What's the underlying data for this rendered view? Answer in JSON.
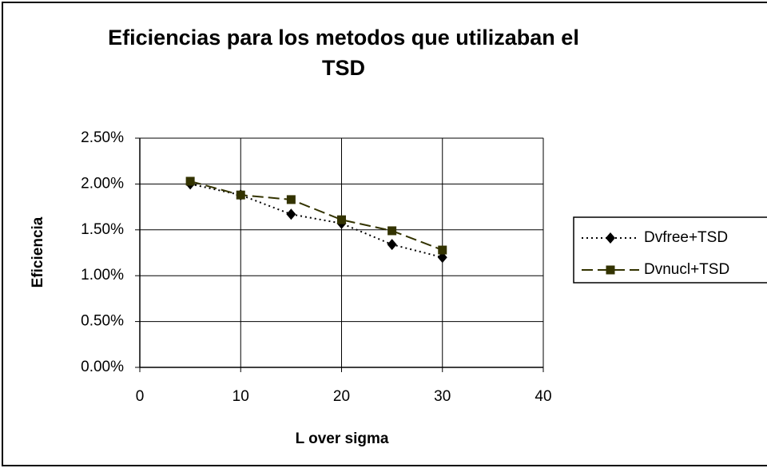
{
  "chart_data": {
    "type": "scatter",
    "title": "Eficiencias para los metodos que utilizaban el TSD",
    "x_label": "L over sigma",
    "y_label": "Eficiencia",
    "x": [
      5,
      10,
      15,
      20,
      25,
      30
    ],
    "series": [
      {
        "name": "Dvfree+TSD",
        "color": "#000000",
        "dash": "dotted",
        "marker": "diamond",
        "values": [
          2.0,
          1.88,
          1.67,
          1.57,
          1.34,
          1.2
        ]
      },
      {
        "name": "Dvnucl+TSD",
        "color": "#333300",
        "dash": "dashed",
        "marker": "square",
        "values": [
          2.03,
          1.88,
          1.83,
          1.61,
          1.49,
          1.28
        ]
      }
    ],
    "xlim": [
      0,
      40
    ],
    "xticks": [
      0,
      10,
      20,
      30,
      40
    ],
    "ylim": [
      0,
      2.5
    ],
    "yticks": [
      {
        "value": 0,
        "label": "0.00%"
      },
      {
        "value": 0.5,
        "label": "0.50%"
      },
      {
        "value": 1.0,
        "label": "1.00%"
      },
      {
        "value": 1.5,
        "label": "1.50%"
      },
      {
        "value": 2.0,
        "label": "2.00%"
      },
      {
        "value": 2.5,
        "label": "2.50%"
      }
    ],
    "grid": true,
    "legend": "right"
  }
}
